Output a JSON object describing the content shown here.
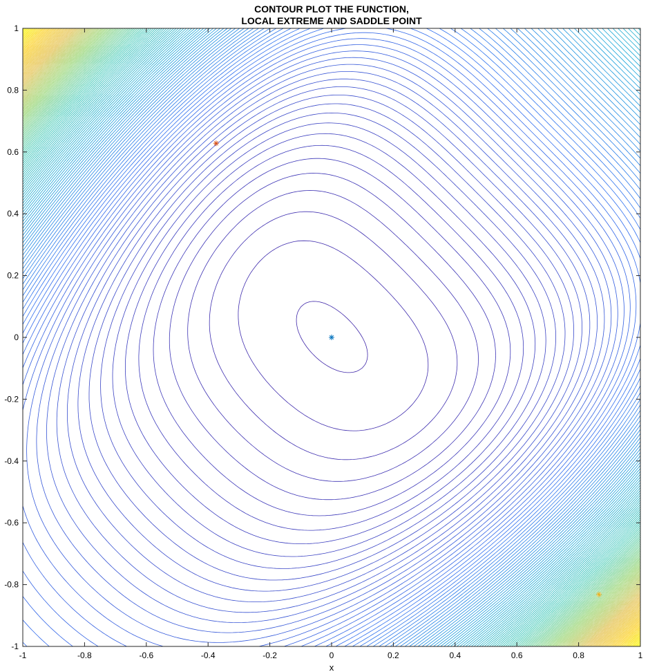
{
  "chart_data": {
    "type": "contour",
    "title": [
      "CONTOUR PLOT THE FUNCTION,",
      "LOCAL EXTREME AND SADDLE POINT"
    ],
    "xlabel": "x",
    "ylabel": "",
    "xlim": [
      -1,
      1
    ],
    "ylim": [
      -1,
      1
    ],
    "xticks": [
      -1,
      -0.8,
      -0.6,
      -0.4,
      -0.2,
      0,
      0.2,
      0.4,
      0.6,
      0.8,
      1
    ],
    "yticks": [
      -1,
      -0.8,
      -0.6,
      -0.4,
      -0.2,
      0,
      0.2,
      0.4,
      0.6,
      0.8,
      1
    ],
    "xtick_labels": [
      "-1",
      "-0.8",
      "-0.6",
      "-0.4",
      "-0.2",
      "0",
      "0.2",
      "0.4",
      "0.6",
      "0.8",
      "1"
    ],
    "ytick_labels": [
      "-1",
      "-0.8",
      "-0.6",
      "-0.4",
      "-0.2",
      "0",
      "0.2",
      "0.4",
      "0.6",
      "0.8",
      "1"
    ],
    "grid": false,
    "box": true,
    "colormap": [
      "#3e26a8",
      "#2f6ef0",
      "#10a2d7",
      "#22c0ab",
      "#7dc94c",
      "#e0b93a",
      "#fbd12b",
      "#f9fb0e"
    ],
    "contour_line_color_low": "#1f3fd0",
    "background": "#ffffff",
    "points": [
      {
        "x": 0,
        "y": 0,
        "marker": "*",
        "color": "#0072bd"
      },
      {
        "x": -0.374,
        "y": 0.628,
        "marker": "*",
        "color": "#d95319"
      },
      {
        "x": 0.866,
        "y": -0.832,
        "marker": "*",
        "color": "#edb120"
      }
    ]
  }
}
